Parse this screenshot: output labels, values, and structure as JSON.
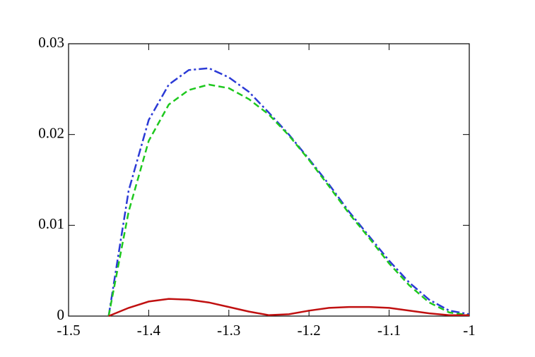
{
  "chart_data": {
    "type": "line",
    "x": [
      -1.45,
      -1.425,
      -1.4,
      -1.375,
      -1.35,
      -1.325,
      -1.3,
      -1.275,
      -1.25,
      -1.225,
      -1.2,
      -1.175,
      -1.15,
      -1.125,
      -1.1,
      -1.075,
      -1.05,
      -1.025,
      -1
    ],
    "series": [
      {
        "color": "#2b3ad6",
        "values": [
          0,
          0.0138,
          0.0216,
          0.0255,
          0.0271,
          0.0273,
          0.0263,
          0.0247,
          0.0224,
          0.02,
          0.0173,
          0.0145,
          0.0115,
          0.0088,
          0.0061,
          0.0037,
          0.0018,
          0.0006,
          0.0002
        ]
      },
      {
        "color": "#1ec81e",
        "values": [
          0,
          0.0115,
          0.0193,
          0.0233,
          0.0249,
          0.0255,
          0.0251,
          0.0239,
          0.0222,
          0.0199,
          0.0172,
          0.0143,
          0.0113,
          0.0086,
          0.0058,
          0.0034,
          0.0015,
          0.0004,
          0.0001
        ]
      },
      {
        "color": "#c01010",
        "values": [
          0,
          0.0009,
          0.0016,
          0.0019,
          0.0018,
          0.0015,
          0.001,
          0.0005,
          0.0001,
          0.0002,
          0.0006,
          0.0009,
          0.001,
          0.001,
          0.0009,
          0.0006,
          0.0003,
          0.0001,
          0.0001
        ]
      }
    ],
    "xlim": [
      -1.5,
      -1
    ],
    "xticks": [
      -1.5,
      -1.4,
      -1.3,
      -1.2,
      -1.1,
      -1
    ],
    "ylim": [
      0,
      0.03
    ],
    "yticks": [
      0,
      0.01,
      0.02,
      0.03
    ]
  }
}
